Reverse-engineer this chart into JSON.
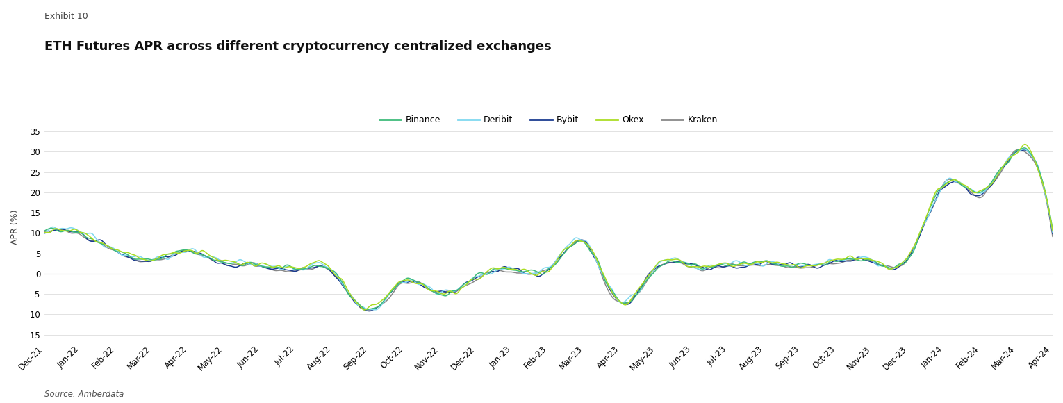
{
  "title": "ETH Futures APR across different cryptocurrency centralized exchanges",
  "exhibit": "Exhibit 10",
  "ylabel": "APR (%)",
  "source": "Source: Amberdata",
  "ylim": [
    -17,
    40
  ],
  "yticks": [
    -15,
    -10,
    -5,
    0,
    5,
    10,
    15,
    20,
    25,
    30,
    35
  ],
  "background_color": "#ffffff",
  "grid_color": "#dddddd",
  "series": {
    "Binance": {
      "color": "#3dbb7a",
      "lw": 1.1,
      "zorder": 5
    },
    "Deribit": {
      "color": "#7fd8f0",
      "lw": 1.1,
      "zorder": 4
    },
    "Bybit": {
      "color": "#1a3a8f",
      "lw": 1.1,
      "zorder": 3
    },
    "Okex": {
      "color": "#aadd22",
      "lw": 1.1,
      "zorder": 6
    },
    "Kraken": {
      "color": "#888888",
      "lw": 1.1,
      "zorder": 2
    }
  },
  "x_labels": [
    "Dec-21",
    "Jan-22",
    "Feb-22",
    "Mar-22",
    "Apr-22",
    "May-22",
    "Jun-22",
    "Jul-22",
    "Aug-22",
    "Sep-22",
    "Oct-22",
    "Nov-22",
    "Dec-22",
    "Jan-23",
    "Feb-23",
    "Mar-23",
    "Apr-23",
    "May-23",
    "Jun-23",
    "Jul-23",
    "Aug-23",
    "Sep-23",
    "Oct-23",
    "Nov-23",
    "Dec-23",
    "Jan-24",
    "Feb-24",
    "Mar-24",
    "Apr-24"
  ],
  "n_months": 29,
  "days_per_month": 30
}
